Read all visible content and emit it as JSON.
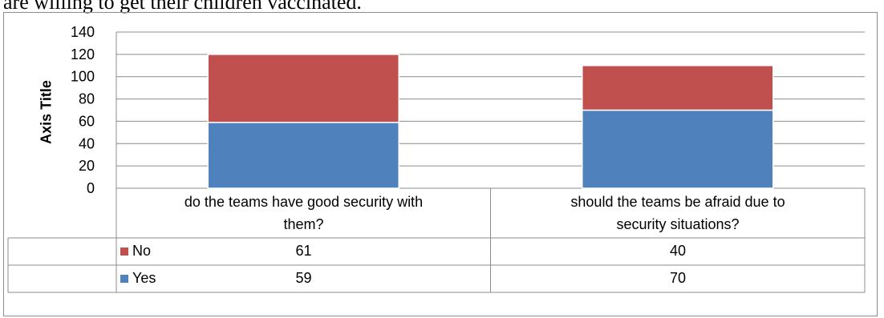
{
  "header_text": "are willing to get their children vaccinated.",
  "chart_data": {
    "type": "bar",
    "stacked": true,
    "categories": [
      "do the teams have good security with them?",
      "should the teams be afraid due to security situations?"
    ],
    "category_lines": [
      [
        "do the teams have good security with",
        "them?"
      ],
      [
        "should the teams be afraid due to",
        "security situations?"
      ]
    ],
    "series": [
      {
        "name": "Yes",
        "values": [
          59,
          70
        ],
        "color": "#4f81bd"
      },
      {
        "name": "No",
        "values": [
          61,
          40
        ],
        "color": "#c0504d"
      }
    ],
    "ylabel": "Axis Title",
    "ylim": [
      0,
      140
    ],
    "yticks": [
      0,
      20,
      40,
      60,
      80,
      100,
      120,
      140
    ],
    "grid": true,
    "data_table": true,
    "legend_placement": "data-table"
  }
}
